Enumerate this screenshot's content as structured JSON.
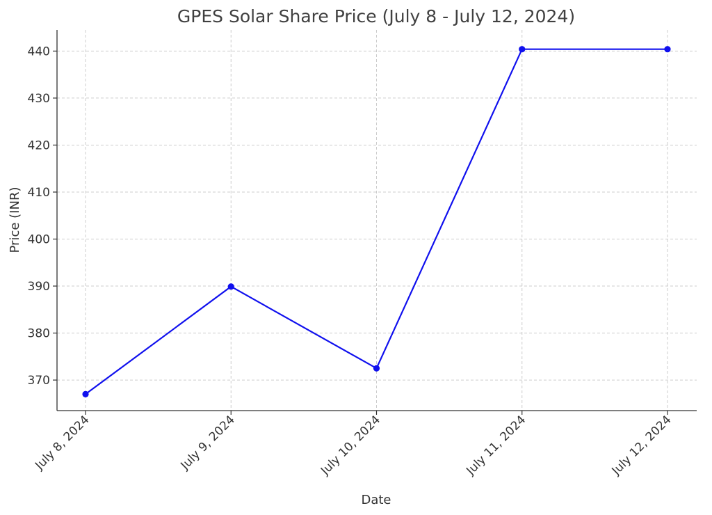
{
  "chart_data": {
    "type": "line",
    "title": "GPES Solar Share Price (July 8 - July 12, 2024)",
    "xlabel": "Date",
    "ylabel": "Price (INR)",
    "categories": [
      "July 8, 2024",
      "July 9, 2024",
      "July 10, 2024",
      "July 11, 2024",
      "July 12, 2024"
    ],
    "series": [
      {
        "name": "GPES Solar",
        "values": [
          367.0,
          389.9,
          372.5,
          440.4,
          440.4
        ]
      }
    ],
    "ylim": [
      363.5,
      444.5
    ],
    "yticks": [
      370,
      380,
      390,
      400,
      410,
      420,
      430,
      440
    ],
    "grid": true,
    "colors": {
      "line": "#1010ee",
      "marker": "#1010ee"
    }
  }
}
